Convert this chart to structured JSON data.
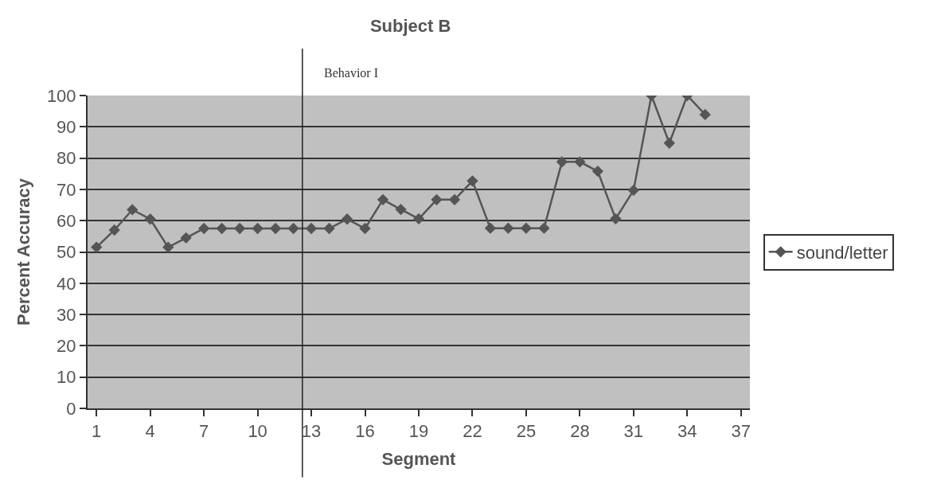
{
  "chart_data": {
    "type": "line",
    "title": "Subject B",
    "xlabel": "Segment",
    "ylabel": "Percent Accuracy",
    "x": [
      1,
      2,
      3,
      4,
      5,
      6,
      7,
      8,
      9,
      10,
      11,
      12,
      13,
      14,
      15,
      16,
      17,
      18,
      19,
      20,
      21,
      22,
      23,
      24,
      25,
      26,
      27,
      28,
      29,
      30,
      31,
      32,
      33,
      34,
      35
    ],
    "series": [
      {
        "name": "sound/letter",
        "color": "#555555",
        "values": [
          51.5,
          57,
          63.5,
          60.5,
          51.5,
          54.5,
          57.5,
          57.5,
          57.5,
          57.5,
          57.5,
          57.5,
          57.5,
          57.5,
          60.5,
          57.5,
          66.7,
          63.6,
          60.6,
          66.7,
          66.7,
          72.7,
          57.6,
          57.6,
          57.6,
          57.6,
          78.8,
          78.8,
          75.8,
          60.6,
          69.7,
          100,
          84.8,
          100,
          93.9
        ]
      }
    ],
    "xlim": [
      0.5,
      37.5
    ],
    "xticks": [
      1,
      4,
      7,
      10,
      13,
      16,
      19,
      22,
      25,
      28,
      31,
      34,
      37
    ],
    "ylim": [
      0,
      100
    ],
    "yticks": [
      0,
      10,
      20,
      30,
      40,
      50,
      60,
      70,
      80,
      90,
      100
    ],
    "ref_lines": [
      {
        "axis": "x",
        "value": 12.5,
        "label": "Behavior I",
        "color": "#222222"
      }
    ],
    "grid": "y",
    "legend": "right",
    "marker": "diamond",
    "line_style": "solid"
  }
}
